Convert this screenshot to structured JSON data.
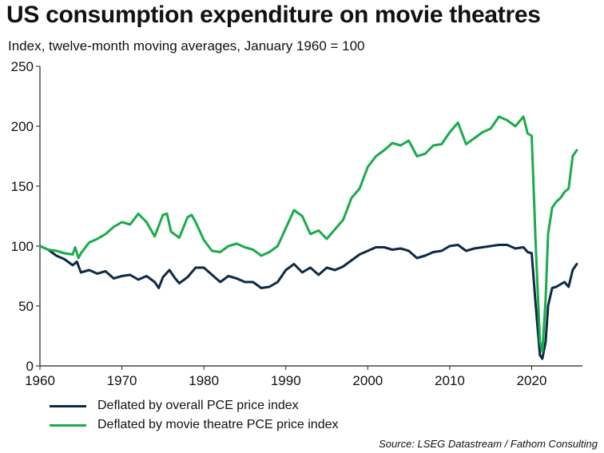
{
  "chart_data": {
    "type": "line",
    "title": "US consumption expenditure on movie theatres",
    "subtitle": "Index, twelve-month moving averages, January 1960 = 100",
    "source": "Source: LSEG Datastream / Fathom Consulting",
    "xlim": [
      1960,
      2025.8
    ],
    "ylim": [
      0,
      250
    ],
    "x_ticks": [
      1960,
      1970,
      1980,
      1990,
      2000,
      2010,
      2020
    ],
    "y_ticks": [
      0,
      50,
      100,
      150,
      200,
      250
    ],
    "series": [
      {
        "name": "Deflated by overall PCE price index",
        "color": "#0d2a45",
        "points": [
          [
            1960,
            100
          ],
          [
            1961,
            97
          ],
          [
            1962,
            92
          ],
          [
            1963,
            89
          ],
          [
            1964,
            84
          ],
          [
            1964.5,
            87
          ],
          [
            1965,
            78
          ],
          [
            1966,
            80
          ],
          [
            1967,
            77
          ],
          [
            1968,
            79
          ],
          [
            1969,
            73
          ],
          [
            1970,
            75
          ],
          [
            1971,
            76
          ],
          [
            1972,
            72
          ],
          [
            1973,
            75
          ],
          [
            1974,
            70
          ],
          [
            1974.5,
            65
          ],
          [
            1975,
            74
          ],
          [
            1975.8,
            80
          ],
          [
            1976.5,
            73
          ],
          [
            1977,
            69
          ],
          [
            1978,
            74
          ],
          [
            1979,
            82
          ],
          [
            1980,
            82
          ],
          [
            1981,
            76
          ],
          [
            1982,
            70
          ],
          [
            1983,
            75
          ],
          [
            1984,
            73
          ],
          [
            1985,
            70
          ],
          [
            1986,
            70
          ],
          [
            1987,
            65
          ],
          [
            1988,
            66
          ],
          [
            1989,
            70
          ],
          [
            1990,
            80
          ],
          [
            1991,
            85
          ],
          [
            1992,
            78
          ],
          [
            1993,
            82
          ],
          [
            1994,
            76
          ],
          [
            1995,
            82
          ],
          [
            1996,
            80
          ],
          [
            1997,
            83
          ],
          [
            1998,
            88
          ],
          [
            1999,
            93
          ],
          [
            2000,
            96
          ],
          [
            2001,
            99
          ],
          [
            2002,
            99
          ],
          [
            2003,
            97
          ],
          [
            2004,
            98
          ],
          [
            2005,
            96
          ],
          [
            2006,
            90
          ],
          [
            2007,
            92
          ],
          [
            2008,
            95
          ],
          [
            2009,
            96
          ],
          [
            2010,
            100
          ],
          [
            2011,
            101
          ],
          [
            2012,
            96
          ],
          [
            2013,
            98
          ],
          [
            2014,
            99
          ],
          [
            2015,
            100
          ],
          [
            2016,
            101
          ],
          [
            2017,
            101
          ],
          [
            2018,
            98
          ],
          [
            2019,
            99
          ],
          [
            2019.5,
            95
          ],
          [
            2020,
            94
          ],
          [
            2020.5,
            50
          ],
          [
            2021,
            9
          ],
          [
            2021.3,
            6
          ],
          [
            2021.7,
            20
          ],
          [
            2022,
            50
          ],
          [
            2022.5,
            65
          ],
          [
            2023,
            66
          ],
          [
            2023.5,
            68
          ],
          [
            2024,
            70
          ],
          [
            2024.5,
            66
          ],
          [
            2025,
            80
          ],
          [
            2025.5,
            85
          ]
        ]
      },
      {
        "name": "Deflated by movie theatre PCE price index",
        "color": "#1aab4b",
        "points": [
          [
            1960,
            100
          ],
          [
            1961,
            97
          ],
          [
            1962,
            96
          ],
          [
            1963,
            94
          ],
          [
            1964,
            93
          ],
          [
            1964.3,
            99
          ],
          [
            1964.7,
            90
          ],
          [
            1965,
            94
          ],
          [
            1966,
            103
          ],
          [
            1967,
            106
          ],
          [
            1968,
            110
          ],
          [
            1969,
            116
          ],
          [
            1970,
            120
          ],
          [
            1971,
            118
          ],
          [
            1972,
            127
          ],
          [
            1973,
            120
          ],
          [
            1974,
            108
          ],
          [
            1975,
            126
          ],
          [
            1975.5,
            127
          ],
          [
            1976,
            112
          ],
          [
            1977,
            107
          ],
          [
            1978,
            124
          ],
          [
            1978.5,
            126
          ],
          [
            1979,
            120
          ],
          [
            1980,
            105
          ],
          [
            1981,
            96
          ],
          [
            1982,
            95
          ],
          [
            1983,
            100
          ],
          [
            1984,
            102
          ],
          [
            1985,
            99
          ],
          [
            1986,
            97
          ],
          [
            1987,
            92
          ],
          [
            1988,
            95
          ],
          [
            1989,
            100
          ],
          [
            1990,
            115
          ],
          [
            1991,
            130
          ],
          [
            1992,
            125
          ],
          [
            1993,
            110
          ],
          [
            1994,
            113
          ],
          [
            1995,
            106
          ],
          [
            1996,
            114
          ],
          [
            1997,
            122
          ],
          [
            1998,
            140
          ],
          [
            1999,
            148
          ],
          [
            2000,
            166
          ],
          [
            2001,
            175
          ],
          [
            2002,
            180
          ],
          [
            2003,
            186
          ],
          [
            2004,
            184
          ],
          [
            2005,
            188
          ],
          [
            2006,
            175
          ],
          [
            2007,
            177
          ],
          [
            2008,
            184
          ],
          [
            2009,
            185
          ],
          [
            2010,
            195
          ],
          [
            2011,
            203
          ],
          [
            2012,
            185
          ],
          [
            2013,
            190
          ],
          [
            2014,
            195
          ],
          [
            2015,
            198
          ],
          [
            2016,
            208
          ],
          [
            2017,
            205
          ],
          [
            2018,
            200
          ],
          [
            2019,
            208
          ],
          [
            2019.5,
            194
          ],
          [
            2020,
            192
          ],
          [
            2020.5,
            100
          ],
          [
            2021,
            20
          ],
          [
            2021.3,
            12
          ],
          [
            2021.7,
            55
          ],
          [
            2022,
            110
          ],
          [
            2022.5,
            132
          ],
          [
            2023,
            137
          ],
          [
            2023.5,
            140
          ],
          [
            2024,
            145
          ],
          [
            2024.5,
            148
          ],
          [
            2025,
            175
          ],
          [
            2025.5,
            180
          ]
        ]
      }
    ]
  }
}
